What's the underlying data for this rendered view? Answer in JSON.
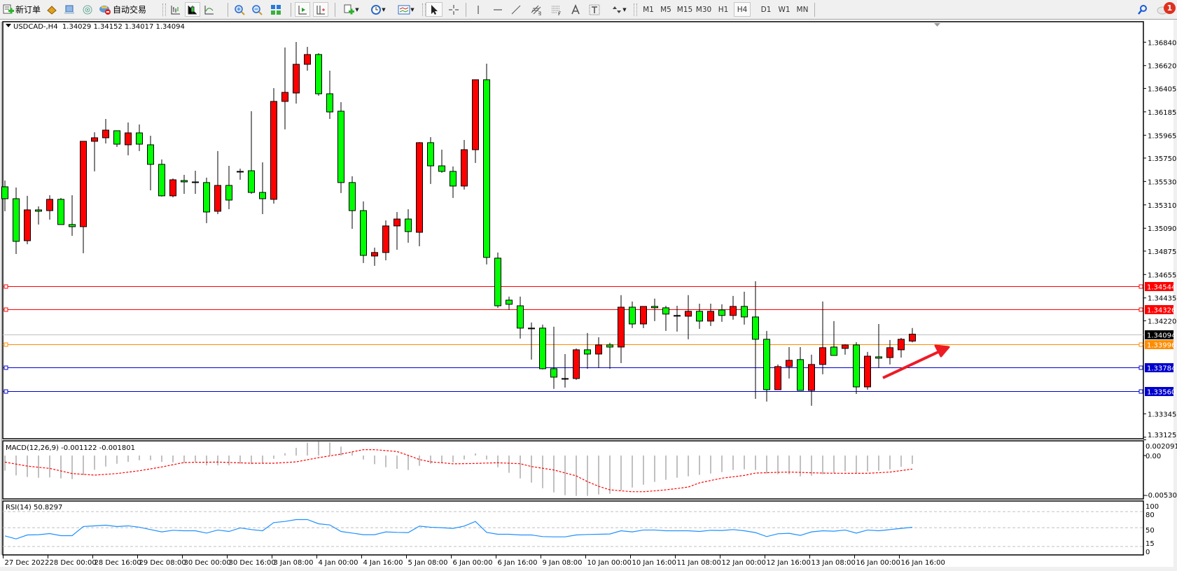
{
  "toolbar": {
    "new_order_label": "新订单",
    "autotrading_label": "自动交易",
    "icons": [
      "new-order-icon",
      "metaeditor-icon",
      "navigator-icon",
      "signal-icon",
      "autotrading-icon",
      "bar-chart-icon",
      "candlestick-icon",
      "line-chart-icon",
      "zoom-in-icon",
      "zoom-out-icon",
      "tile-windows-icon",
      "auto-scroll-icon",
      "chart-shift-icon",
      "new-chart-icon",
      "period-icon",
      "templates-icon",
      "cursor-icon",
      "crosshair-icon",
      "vertical-line-icon",
      "horizontal-line-icon",
      "trendline-icon",
      "equidistant-channel-icon",
      "fibonacci-icon",
      "text-icon",
      "text-label-icon",
      "arrows-icon",
      "search-icon",
      "notifications-icon"
    ],
    "timeframes": [
      "M1",
      "M5",
      "M15",
      "M30",
      "H1",
      "H4",
      "D1",
      "W1",
      "MN"
    ],
    "active_timeframe": "H4",
    "notification_count": "1"
  },
  "chart": {
    "header": "USDCAD-,H4  1.34029 1.34152 1.34017 1.34094",
    "colors": {
      "bull": "#ff0000",
      "bear": "#00ff00",
      "bid_line": "#c0c0c0",
      "macd_hist": "#c0c0c0",
      "macd_signal": "#ff0000",
      "rsi": "#1e90ff",
      "arrow": "#ed1c24"
    }
  },
  "chart_data": {
    "type": "candlestick",
    "symbol": "USDCAD-",
    "timeframe": "H4",
    "ohlc_fields": [
      "open",
      "high",
      "low",
      "close"
    ],
    "candles": [
      [
        1.3548,
        1.35539,
        1.3525,
        1.35368
      ],
      [
        1.35368,
        1.35473,
        1.34848,
        1.34967
      ],
      [
        1.34973,
        1.35395,
        1.3494,
        1.35263
      ],
      [
        1.35263,
        1.35296,
        1.35125,
        1.3525
      ],
      [
        1.35256,
        1.35401,
        1.35171,
        1.35362
      ],
      [
        1.35362,
        1.35375,
        1.35125,
        1.35125
      ],
      [
        1.35125,
        1.35401,
        1.35019,
        1.35105
      ],
      [
        1.35105,
        1.35908,
        1.34855,
        1.35908
      ],
      [
        1.35908,
        1.35993,
        1.35625,
        1.35941
      ],
      [
        1.35941,
        1.36118,
        1.35888,
        1.36013
      ],
      [
        1.36007,
        1.36007,
        1.35855,
        1.35881
      ],
      [
        1.35875,
        1.36085,
        1.35776,
        1.35987
      ],
      [
        1.35987,
        1.36066,
        1.35816,
        1.35881
      ],
      [
        1.35875,
        1.3596,
        1.35447,
        1.35691
      ],
      [
        1.35691,
        1.35737,
        1.35388,
        1.35395
      ],
      [
        1.35395,
        1.35559,
        1.35381,
        1.35546
      ],
      [
        1.35539,
        1.35592,
        1.35414,
        1.35526
      ],
      [
        1.35526,
        1.35631,
        1.35414,
        1.35526
      ],
      [
        1.3552,
        1.35566,
        1.35138,
        1.35243
      ],
      [
        1.3525,
        1.35816,
        1.35223,
        1.35493
      ],
      [
        1.35493,
        1.35677,
        1.35269,
        1.35355
      ],
      [
        1.35625,
        1.35651,
        1.35546,
        1.35625
      ],
      [
        1.35631,
        1.36191,
        1.35414,
        1.35427
      ],
      [
        1.35427,
        1.3571,
        1.35223,
        1.35368
      ],
      [
        1.35362,
        1.36408,
        1.35322,
        1.36283
      ],
      [
        1.36283,
        1.3679,
        1.3602,
        1.36368
      ],
      [
        1.36362,
        1.36842,
        1.36263,
        1.36632
      ],
      [
        1.36632,
        1.36796,
        1.36572,
        1.36724
      ],
      [
        1.36724,
        1.36737,
        1.36336,
        1.36355
      ],
      [
        1.36355,
        1.36572,
        1.36118,
        1.36184
      ],
      [
        1.36191,
        1.36276,
        1.35421,
        1.3552
      ],
      [
        1.3552,
        1.35579,
        1.35085,
        1.35256
      ],
      [
        1.35256,
        1.35342,
        1.34763,
        1.34835
      ],
      [
        1.34829,
        1.34908,
        1.34737,
        1.34862
      ],
      [
        1.34862,
        1.35164,
        1.34789,
        1.35112
      ],
      [
        1.35112,
        1.35243,
        1.34888,
        1.35177
      ],
      [
        1.35177,
        1.35269,
        1.34954,
        1.35059
      ],
      [
        1.35052,
        1.35901,
        1.34921,
        1.35895
      ],
      [
        1.35895,
        1.35947,
        1.35507,
        1.35677
      ],
      [
        1.35677,
        1.35829,
        1.35612,
        1.35625
      ],
      [
        1.35625,
        1.35671,
        1.35375,
        1.35487
      ],
      [
        1.35487,
        1.35921,
        1.35454,
        1.35829
      ],
      [
        1.35829,
        1.36487,
        1.35704,
        1.36487
      ],
      [
        1.36487,
        1.36638,
        1.3475,
        1.34816
      ],
      [
        1.34809,
        1.34862,
        1.34342,
        1.34361
      ],
      [
        1.34414,
        1.34447,
        1.34322,
        1.34375
      ],
      [
        1.34361,
        1.34447,
        1.34052,
        1.34151
      ],
      [
        1.34151,
        1.34204,
        1.33855,
        1.34151
      ],
      [
        1.34151,
        1.34184,
        1.33763,
        1.33769
      ],
      [
        1.33769,
        1.34164,
        1.33579,
        1.3369
      ],
      [
        1.33677,
        1.33907,
        1.33592,
        1.33677
      ],
      [
        1.33677,
        1.3396,
        1.33664,
        1.33947
      ],
      [
        1.33947,
        1.34105,
        1.33769,
        1.33907
      ],
      [
        1.33907,
        1.34065,
        1.33776,
        1.33993
      ],
      [
        1.33993,
        1.34013,
        1.33769,
        1.33973
      ],
      [
        1.33973,
        1.34461,
        1.33822,
        1.34348
      ],
      [
        1.34348,
        1.34401,
        1.34151,
        1.3419
      ],
      [
        1.3419,
        1.34355,
        1.34151,
        1.34355
      ],
      [
        1.34355,
        1.34428,
        1.34217,
        1.34342
      ],
      [
        1.34342,
        1.34361,
        1.34125,
        1.34283
      ],
      [
        1.3427,
        1.34361,
        1.34118,
        1.3427
      ],
      [
        1.34263,
        1.34461,
        1.34046,
        1.34309
      ],
      [
        1.34309,
        1.34381,
        1.34144,
        1.34217
      ],
      [
        1.34217,
        1.34381,
        1.34171,
        1.34309
      ],
      [
        1.34322,
        1.34375,
        1.3421,
        1.3427
      ],
      [
        1.3427,
        1.34454,
        1.3423,
        1.34355
      ],
      [
        1.34355,
        1.34493,
        1.34184,
        1.34256
      ],
      [
        1.34256,
        1.34592,
        1.33486,
        1.34046
      ],
      [
        1.34046,
        1.34125,
        1.3346,
        1.33572
      ],
      [
        1.33572,
        1.33809,
        1.33572,
        1.33789
      ],
      [
        1.33789,
        1.33973,
        1.33677,
        1.33848
      ],
      [
        1.33855,
        1.33973,
        1.33565,
        1.33565
      ],
      [
        1.33565,
        1.33901,
        1.33421,
        1.33809
      ],
      [
        1.33809,
        1.34401,
        1.33717,
        1.33967
      ],
      [
        1.33973,
        1.34217,
        1.33894,
        1.33894
      ],
      [
        1.3396,
        1.34,
        1.33901,
        1.33993
      ],
      [
        1.33993,
        1.34019,
        1.33532,
        1.33598
      ],
      [
        1.33598,
        1.33927,
        1.33572,
        1.33887
      ],
      [
        1.33881,
        1.3419,
        1.33776,
        1.33868
      ],
      [
        1.33874,
        1.34039,
        1.33809,
        1.33967
      ],
      [
        1.33947,
        1.34059,
        1.33874,
        1.34046
      ],
      [
        1.34029,
        1.34152,
        1.34017,
        1.34094
      ]
    ],
    "price_ticks": [
      "1.36840",
      "1.36620",
      "1.36405",
      "1.36185",
      "1.35965",
      "1.35750",
      "1.35530",
      "1.35310",
      "1.35090",
      "1.34875",
      "1.34655",
      "1.34435",
      "1.34220",
      "1.33345",
      "1.33125"
    ],
    "ylim": [
      1.33125,
      1.3684
    ],
    "horizontal_lines": [
      {
        "price": "1.34544",
        "color": "#ff0000"
      },
      {
        "price": "1.34326",
        "color": "#ff0000"
      },
      {
        "price": "1.33996",
        "color": "#ff8c00"
      },
      {
        "price": "1.33784",
        "color": "#0000cc"
      },
      {
        "price": "1.33560",
        "color": "#0000cc"
      }
    ],
    "bid": "1.34094",
    "time_labels": [
      "27 Dec 2022",
      "28 Dec 00:00",
      "28 Dec 16:00",
      "29 Dec 08:00",
      "30 Dec 00:00",
      "30 Dec 16:00",
      "3 Jan 08:00",
      "4 Jan 00:00",
      "4 Jan 16:00",
      "5 Jan 08:00",
      "6 Jan 00:00",
      "6 Jan 16:00",
      "9 Jan 08:00",
      "10 Jan 00:00",
      "10 Jan 16:00",
      "11 Jan 08:00",
      "12 Jan 00:00",
      "12 Jan 16:00",
      "13 Jan 08:00",
      "16 Jan 00:00",
      "16 Jan 16:00"
    ],
    "macd": {
      "label": "MACD(12,26,9) -0.001122 -0.001801",
      "ticks": [
        "0.002091",
        "0.00",
        "-0.005303"
      ],
      "ylim": [
        -0.005303,
        0.002091
      ],
      "histogram": [
        -0.00202,
        -0.00264,
        -0.00285,
        -0.00295,
        -0.00291,
        -0.00304,
        -0.00313,
        -0.0026,
        -0.00189,
        -0.00146,
        -0.00109,
        -0.00084,
        -0.00062,
        -0.00062,
        -0.00084,
        -0.0009,
        -0.00096,
        -0.00084,
        -0.0013,
        -0.0013,
        -0.0013,
        -0.00109,
        -0.00115,
        -0.00105,
        -0.00043,
        0.00031,
        0.00102,
        0.00171,
        0.00186,
        0.00174,
        0.00118,
        0.0005,
        -0.00053,
        -0.00115,
        -0.00155,
        -0.00177,
        -0.00192,
        -0.00136,
        -0.00109,
        -0.00096,
        -0.0009,
        -0.00053,
        0.00028,
        -0.00053,
        -0.00155,
        -0.00229,
        -0.00304,
        -0.0036,
        -0.00434,
        -0.0049,
        -0.00527,
        -0.00536,
        -0.00536,
        -0.00518,
        -0.00508,
        -0.00462,
        -0.00425,
        -0.00388,
        -0.0035,
        -0.00322,
        -0.00295,
        -0.00276,
        -0.00257,
        -0.00239,
        -0.0022,
        -0.00192,
        -0.00183,
        -0.00192,
        -0.00239,
        -0.00248,
        -0.00248,
        -0.00276,
        -0.00267,
        -0.00248,
        -0.00229,
        -0.00211,
        -0.00229,
        -0.00211,
        -0.00202,
        -0.00183,
        -0.0015,
        -0.00112
      ],
      "signal": [
        -0.00087,
        -0.00114,
        -0.0014,
        -0.00156,
        -0.00171,
        -0.00205,
        -0.00239,
        -0.0025,
        -0.0026,
        -0.0025,
        -0.00239,
        -0.00221,
        -0.00202,
        -0.00177,
        -0.00152,
        -0.00122,
        -0.00093,
        -0.0009,
        -0.00089,
        -0.00087,
        -0.00092,
        -0.00097,
        -0.00102,
        -0.00102,
        -0.00102,
        -0.00093,
        -0.00084,
        -0.00056,
        -0.00028,
        -5e-05,
        0.00019,
        0.00049,
        0.00078,
        0.00078,
        0.00066,
        0.00053,
        3e-05,
        -0.00053,
        -0.00084,
        -0.00096,
        -0.0011,
        -0.00108,
        -0.00105,
        -0.001,
        -0.00096,
        -0.00102,
        -0.00109,
        -0.00146,
        -0.00169,
        -0.00192,
        -0.00231,
        -0.0027,
        -0.00347,
        -0.00409,
        -0.00456,
        -0.00469,
        -0.00481,
        -0.00481,
        -0.00469,
        -0.00456,
        -0.00438,
        -0.00419,
        -0.00363,
        -0.00332,
        -0.00301,
        -0.00283,
        -0.00264,
        -0.00233,
        -0.00228,
        -0.00223,
        -0.0022,
        -0.00224,
        -0.00229,
        -0.00233,
        -0.00235,
        -0.00236,
        -0.00236,
        -0.00236,
        -0.00228,
        -0.0022,
        -0.002,
        -0.0018
      ]
    },
    "rsi": {
      "label": "RSI(14) 50.8297",
      "ticks": [
        "100",
        "80",
        "50",
        "15",
        "0"
      ],
      "levels": [
        80,
        50,
        15
      ],
      "ylim": [
        0,
        100
      ],
      "values": [
        34.8,
        29.1,
        36.5,
        37,
        39.1,
        35.2,
        35.2,
        52.2,
        53.5,
        54.8,
        52.2,
        53.5,
        50.9,
        46.5,
        42.2,
        45.2,
        44.3,
        44.3,
        40,
        45.7,
        43,
        49.6,
        46.5,
        44.3,
        59.6,
        61.7,
        65.2,
        65.2,
        57.4,
        55.2,
        43,
        40,
        37,
        37,
        42.2,
        41.3,
        40.9,
        53,
        50.9,
        50,
        48.7,
        53,
        61.7,
        41.3,
        37.8,
        37.8,
        36.5,
        36.5,
        33.5,
        33,
        33,
        36.5,
        37.4,
        37.8,
        38.3,
        44.3,
        42.2,
        45.7,
        45.7,
        44.3,
        44.3,
        44.3,
        43,
        45.2,
        44.8,
        46.5,
        44.3,
        40.9,
        33.5,
        38.7,
        39.6,
        35.7,
        42.2,
        44.3,
        43.5,
        45.7,
        40,
        45.7,
        44.3,
        46.5,
        48.7,
        50.83
      ]
    }
  }
}
